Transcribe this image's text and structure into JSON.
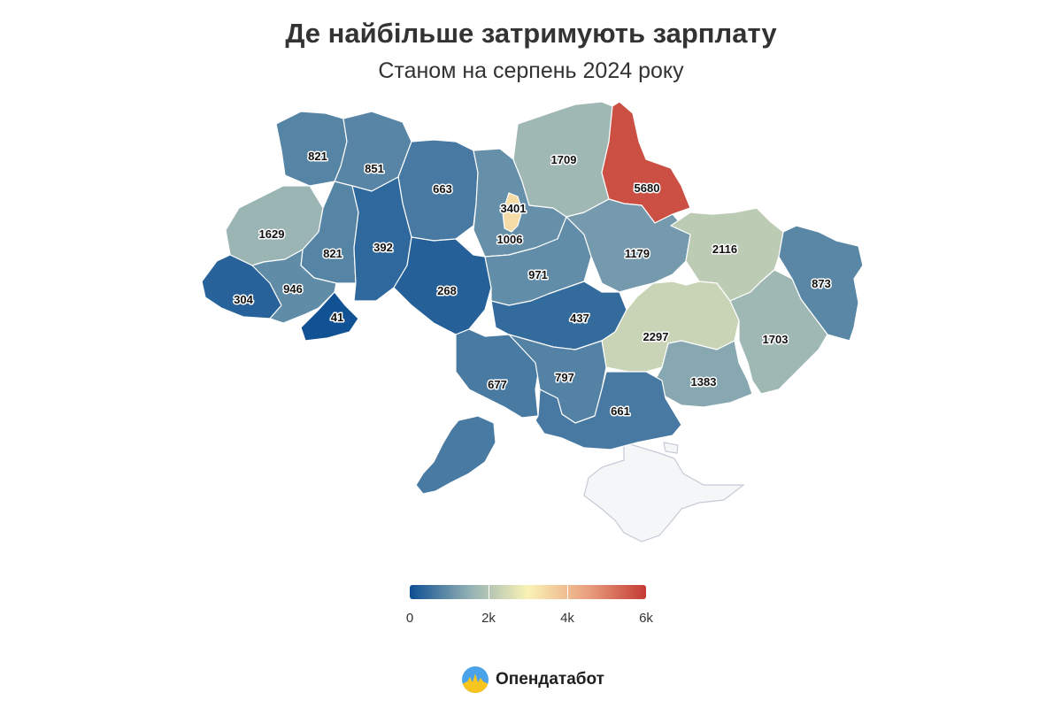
{
  "title": "Де найбільше затримують зарплату",
  "subtitle": "Станом на серпень 2024 року",
  "brand": {
    "name": "Опендатабот",
    "logo_icon": "opendatabot-logo-icon"
  },
  "chart_data": {
    "type": "choropleth",
    "title": "Де найбільше затримують зарплату",
    "subtitle": "Станом на серпень 2024 року",
    "color_scale": {
      "min": 0,
      "max": 6000,
      "stops": [
        "#0d4f93",
        "#91afb4",
        "#faf2b5",
        "#e9a17f",
        "#c43934"
      ],
      "tick_labels": [
        "0",
        "2k",
        "4k",
        "6k"
      ],
      "tick_values": [
        0,
        2000,
        4000,
        6000
      ]
    },
    "regions": [
      {
        "value": 821
      },
      {
        "value": 851
      },
      {
        "value": 663
      },
      {
        "value": 1006
      },
      {
        "value": 1709
      },
      {
        "value": 5680
      },
      {
        "value": 1629
      },
      {
        "value": 821
      },
      {
        "value": 392
      },
      {
        "value": 304
      },
      {
        "value": 946
      },
      {
        "value": 41
      },
      {
        "value": 268
      },
      {
        "value": 971
      },
      {
        "value": 1179
      },
      {
        "value": 2116
      },
      {
        "value": 873
      },
      {
        "value": 437
      },
      {
        "value": 2297
      },
      {
        "value": 1703
      },
      {
        "value": 677
      },
      {
        "value": 797
      },
      {
        "value": 1383
      },
      {
        "value": 661
      },
      {
        "value": 3401
      }
    ]
  }
}
